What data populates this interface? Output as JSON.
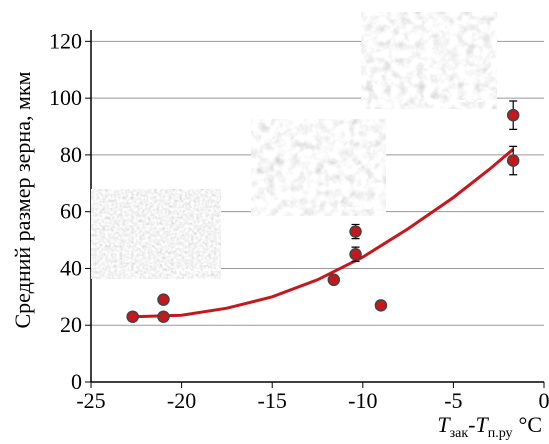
{
  "chart_data": {
    "type": "scatter",
    "y_label": "Средний размер зерна, мкм",
    "x_label_parts": [
      "T",
      "зак",
      "-T",
      "п.ру",
      "°C"
    ],
    "xlim": [
      -25,
      0
    ],
    "xticks": [
      -25,
      -20,
      -15,
      -10,
      -5,
      0
    ],
    "ylim": [
      0,
      124
    ],
    "yticks": [
      0,
      20,
      40,
      60,
      80,
      100,
      120
    ],
    "grid": true,
    "points": {
      "color": "#c8161d",
      "x": [
        -22.7,
        -21.0,
        -21.0,
        -11.6,
        -10.4,
        -10.4,
        -9.0,
        -1.7,
        -1.7
      ],
      "y": [
        23,
        29,
        23,
        36,
        53,
        45,
        27,
        94,
        78
      ],
      "yerr": [
        1.5,
        1.5,
        1.5,
        1.5,
        2.5,
        2.5,
        1.5,
        5,
        5
      ]
    },
    "fit": {
      "color": "#c8161d",
      "x": [
        -22.7,
        -20,
        -17.5,
        -15,
        -12.5,
        -10,
        -7.5,
        -5,
        -3,
        -1.7
      ],
      "y": [
        23,
        23.5,
        26,
        30,
        36,
        44,
        54,
        65,
        75,
        82
      ]
    }
  }
}
